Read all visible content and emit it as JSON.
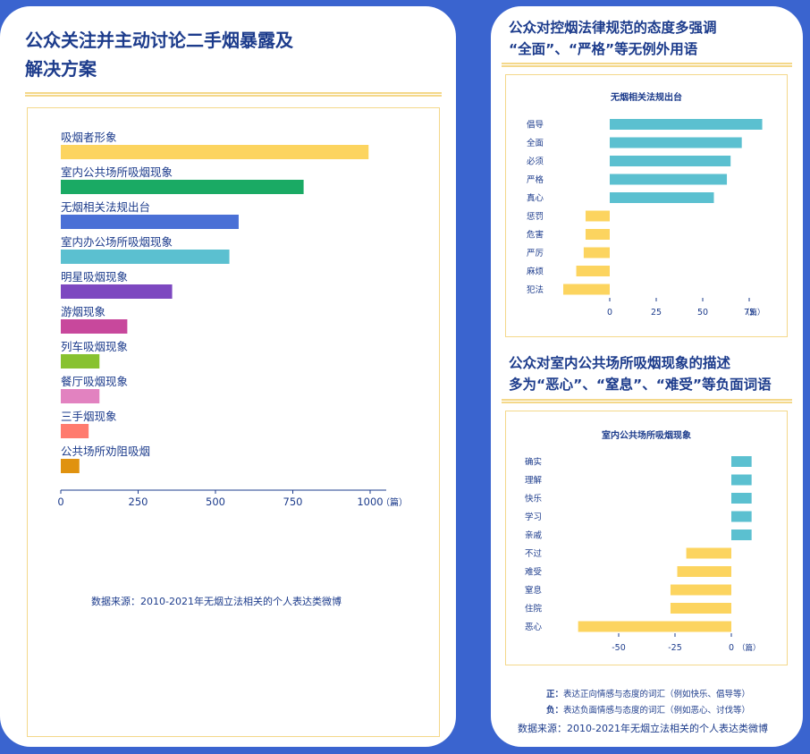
{
  "left": {
    "title": "公众关注并主动讨论二手烟暴露及\n解决方案",
    "source": "数据来源：2010-2021年无烟立法相关的个人表达类微博"
  },
  "right": {
    "title1": "公众对控烟法律规范的态度多强调\n“全面”、“严格”等无例外用语",
    "title2": "公众对室内公共场所吸烟现象的描述\n多为“恶心”、“窒息”、“难受”等负面词语",
    "note_pos_label": "正：",
    "note_pos_text": "表达正向情感与态度的词汇（例如快乐、倡导等）",
    "note_neg_label": "负：",
    "note_neg_text": "表达负面情感与态度的词汇（例如恶心、讨伐等）",
    "source": "数据来源：2010-2021年无烟立法相关的个人表达类微博"
  },
  "chart_data": [
    {
      "type": "bar",
      "orientation": "horizontal",
      "title": "",
      "categories": [
        "吸烟者形象",
        "室内公共场所吸烟现象",
        "无烟相关法规出台",
        "室内办公场所吸烟现象",
        "明星吸烟现象",
        "游烟现象",
        "列车吸烟现象",
        "餐厅吸烟现象",
        "三手烟现象",
        "公共场所劝阻吸烟"
      ],
      "values": [
        995,
        785,
        575,
        545,
        360,
        215,
        125,
        125,
        90,
        60
      ],
      "colors": [
        "#fcd45f",
        "#1aaa64",
        "#4a70d6",
        "#5bc0d0",
        "#7d48c0",
        "#c8489c",
        "#88c230",
        "#e282c0",
        "#ff7b6e",
        "#e0920f"
      ],
      "xlim": [
        0,
        1050
      ],
      "ticks": [
        0,
        250,
        500,
        750,
        1000
      ],
      "unit": "（篇）",
      "grid": false
    },
    {
      "type": "bar",
      "orientation": "horizontal",
      "title": "无烟相关法规出台",
      "categories": [
        "倡导",
        "全面",
        "必须",
        "严格",
        "真心",
        "惩罚",
        "危害",
        "严厉",
        "麻烦",
        "犯法"
      ],
      "values": [
        82,
        71,
        65,
        63,
        56,
        -13,
        -13,
        -14,
        -18,
        -25
      ],
      "positive_color": "#5bc0d0",
      "negative_color": "#fcd45f",
      "xlim": [
        -30,
        90
      ],
      "ticks": [
        0,
        25,
        50,
        75
      ],
      "unit": "（篇）",
      "grid": false
    },
    {
      "type": "bar",
      "orientation": "horizontal",
      "title": "室内公共场所吸烟现象",
      "categories": [
        "确实",
        "理解",
        "快乐",
        "学习",
        "亲戚",
        "不过",
        "难受",
        "窒息",
        "住院",
        "恶心"
      ],
      "values": [
        9,
        9,
        9,
        9,
        9,
        -20,
        -24,
        -27,
        -27,
        -68
      ],
      "positive_color": "#5bc0d0",
      "negative_color": "#fcd45f",
      "xlim": [
        -72,
        12
      ],
      "ticks": [
        -50,
        -25,
        0
      ],
      "unit": "（篇）",
      "grid": false
    }
  ]
}
